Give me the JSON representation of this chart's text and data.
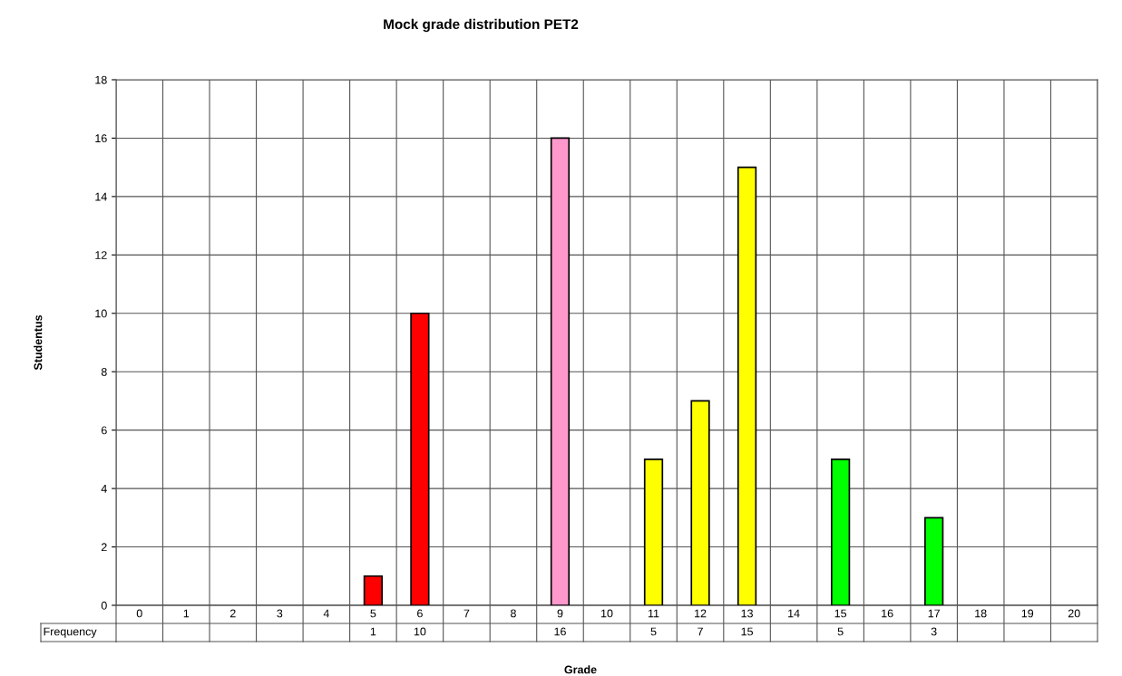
{
  "chart_data": {
    "type": "bar",
    "title": "Mock grade distribution PET2",
    "xlabel": "Grade",
    "ylabel": "Studentus",
    "categories": [
      "0",
      "1",
      "2",
      "3",
      "4",
      "5",
      "6",
      "7",
      "8",
      "9",
      "10",
      "11",
      "12",
      "13",
      "14",
      "15",
      "16",
      "17",
      "18",
      "19",
      "20"
    ],
    "series": [
      {
        "name": "Frequency",
        "values": [
          null,
          null,
          null,
          null,
          null,
          1,
          10,
          null,
          null,
          16,
          null,
          5,
          7,
          15,
          null,
          5,
          null,
          3,
          null,
          null,
          null
        ],
        "colors": [
          null,
          null,
          null,
          null,
          null,
          "#ff0000",
          "#ff0000",
          null,
          null,
          "#ff99cc",
          null,
          "#ffff00",
          "#ffff00",
          "#ffff00",
          null,
          "#00ff00",
          null,
          "#00ff00",
          null,
          null,
          null
        ]
      }
    ],
    "ylim": [
      0,
      18
    ],
    "yticks": [
      0,
      2,
      4,
      6,
      8,
      10,
      12,
      14,
      16,
      18
    ],
    "grid": true,
    "data_labels": true,
    "legend": false
  }
}
